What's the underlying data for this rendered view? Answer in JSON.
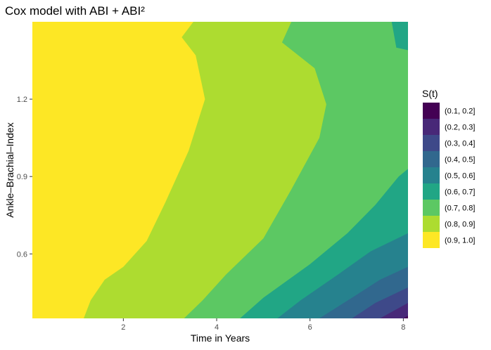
{
  "chart_data": {
    "type": "contour",
    "title": "Cox model with ABI + ABI²",
    "xlabel": "Time in Years",
    "ylabel": "Ankle–Brachial–Index",
    "xlim": [
      0.05,
      8.1
    ],
    "ylim": [
      0.35,
      1.5
    ],
    "x_ticks": [
      2,
      4,
      6,
      8
    ],
    "x_tick_labels": [
      "2",
      "4",
      "6",
      "8"
    ],
    "y_ticks": [
      0.6,
      0.9,
      1.2
    ],
    "y_tick_labels": [
      "0.6",
      "0.9",
      "1.2"
    ],
    "fill_variable": "S(t)",
    "legend": {
      "title": "S(t)",
      "position": "right",
      "bins": [
        {
          "label": "(0.1, 0.2]",
          "color": "#440154"
        },
        {
          "label": "(0.2, 0.3]",
          "color": "#482878"
        },
        {
          "label": "(0.3, 0.4]",
          "color": "#3E4989"
        },
        {
          "label": "(0.4, 0.5]",
          "color": "#31688E"
        },
        {
          "label": "(0.5, 0.6]",
          "color": "#26828E"
        },
        {
          "label": "(0.6, 0.7]",
          "color": "#21A685"
        },
        {
          "label": "(0.7, 0.8]",
          "color": "#5CC863"
        },
        {
          "label": "(0.8, 0.9]",
          "color": "#ADDC30"
        },
        {
          "label": "(0.9, 1.0]",
          "color": "#FDE725"
        }
      ]
    },
    "contour_boundaries": [
      {
        "level": 0.9,
        "points": [
          [
            1.15,
            0.35
          ],
          [
            1.3,
            0.42
          ],
          [
            1.6,
            0.5
          ],
          [
            2.0,
            0.55
          ],
          [
            2.5,
            0.65
          ],
          [
            2.9,
            0.8
          ],
          [
            3.4,
            1.0
          ],
          [
            3.75,
            1.2
          ],
          [
            3.55,
            1.37
          ],
          [
            3.25,
            1.44
          ],
          [
            3.5,
            1.5
          ]
        ]
      },
      {
        "level": 0.8,
        "points": [
          [
            3.3,
            0.35
          ],
          [
            3.7,
            0.42
          ],
          [
            4.2,
            0.52
          ],
          [
            5.0,
            0.66
          ],
          [
            5.6,
            0.85
          ],
          [
            6.2,
            1.05
          ],
          [
            6.35,
            1.18
          ],
          [
            6.1,
            1.32
          ],
          [
            5.4,
            1.42
          ],
          [
            5.6,
            1.5
          ]
        ]
      },
      {
        "level": 0.7,
        "points": [
          [
            4.5,
            0.35
          ],
          [
            5.0,
            0.43
          ],
          [
            6.0,
            0.56
          ],
          [
            6.8,
            0.68
          ],
          [
            7.4,
            0.79
          ],
          [
            7.9,
            0.9
          ],
          [
            8.1,
            0.93
          ]
        ]
      },
      {
        "level": 0.6,
        "points": [
          [
            5.3,
            0.35
          ],
          [
            5.8,
            0.42
          ],
          [
            6.6,
            0.52
          ],
          [
            7.3,
            0.61
          ],
          [
            8.1,
            0.68
          ]
        ]
      },
      {
        "level": 0.5,
        "points": [
          [
            6.2,
            0.35
          ],
          [
            6.9,
            0.43
          ],
          [
            7.5,
            0.5
          ],
          [
            8.1,
            0.55
          ]
        ]
      },
      {
        "level": 0.4,
        "points": [
          [
            6.9,
            0.35
          ],
          [
            7.4,
            0.41
          ],
          [
            8.1,
            0.47
          ]
        ]
      },
      {
        "level": 0.3,
        "points": [
          [
            7.5,
            0.35
          ],
          [
            8.1,
            0.41
          ]
        ]
      },
      {
        "level": 0.2,
        "points": [
          [
            8.0,
            0.35
          ],
          [
            8.1,
            0.36
          ]
        ]
      },
      {
        "level": 0.7,
        "points": [
          [
            7.75,
            1.5
          ],
          [
            7.85,
            1.4
          ],
          [
            8.1,
            1.39
          ]
        ]
      }
    ]
  }
}
